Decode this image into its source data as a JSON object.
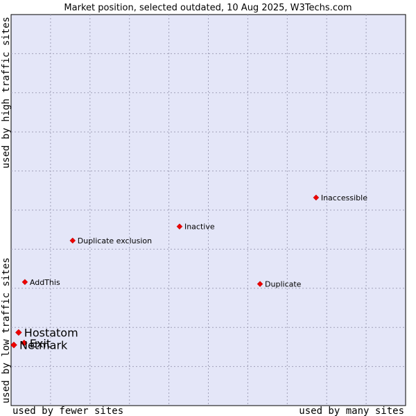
{
  "chart_data": {
    "type": "scatter",
    "title": "Market position, selected outdated, 10 Aug 2025, W3Techs.com",
    "xlabel_left": "used by fewer sites",
    "xlabel_right": "used by many sites",
    "ylabel_bottom": "used by low traffic sites",
    "ylabel_top": "used by high traffic sites",
    "xlim": [
      0,
      100
    ],
    "ylim": [
      0,
      100
    ],
    "grid": true,
    "colors": {
      "plot_background": "#e4e6f8",
      "grid": "#a0a0b8",
      "marker": "#ee0000"
    },
    "points": [
      {
        "label": "Inaccessible",
        "x": 77.3,
        "y": 53.2,
        "size": "small"
      },
      {
        "label": "Inactive",
        "x": 42.7,
        "y": 45.8,
        "size": "small"
      },
      {
        "label": "Duplicate exclusion",
        "x": 15.6,
        "y": 42.2,
        "size": "small"
      },
      {
        "label": "AddThis",
        "x": 3.5,
        "y": 31.6,
        "size": "small"
      },
      {
        "label": "Duplicate",
        "x": 63.1,
        "y": 31.1,
        "size": "small"
      },
      {
        "label": "Hostatom",
        "x": 1.9,
        "y": 18.7,
        "size": "large"
      },
      {
        "label": "Exit",
        "x": 3.3,
        "y": 16.0,
        "size": "large"
      },
      {
        "label": "Netmark",
        "x": 0.7,
        "y": 15.5,
        "size": "large"
      }
    ]
  }
}
